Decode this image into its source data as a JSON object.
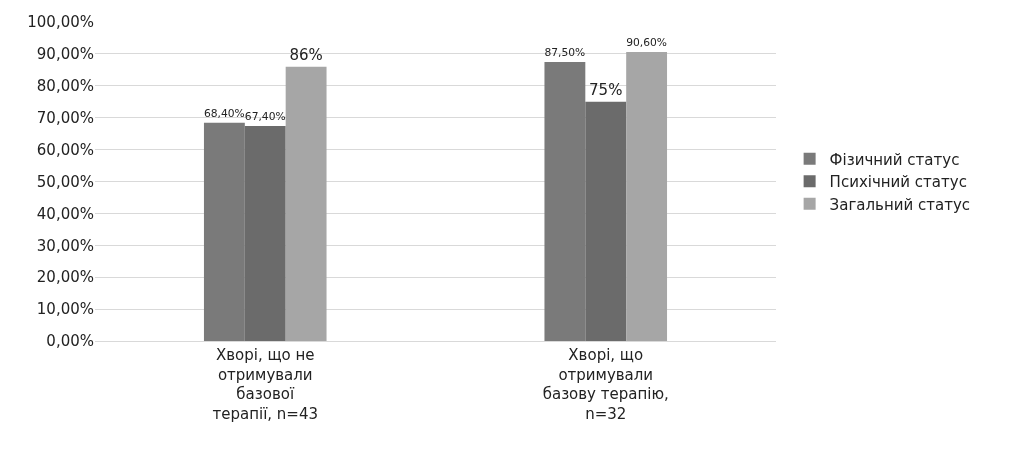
{
  "chart_data": {
    "type": "bar",
    "categories": [
      "Хворі, що не отримували базової терапії, n=43",
      "Хворі, що отримували базову терапію, n=32"
    ],
    "series": [
      {
        "name": "Фізичний статус",
        "color": "#7a7a7a",
        "values": [
          68.4,
          87.5
        ],
        "value_labels": [
          "68,40%",
          "87,50%"
        ]
      },
      {
        "name": "Психічний статус",
        "color": "#6b6b6b",
        "values": [
          67.4,
          75
        ],
        "value_labels": [
          "67,40%",
          "75%"
        ]
      },
      {
        "name": "Загальний статус",
        "color": "#a6a6a6",
        "values": [
          86,
          90.6
        ],
        "value_labels": [
          "86%",
          "90,60%"
        ]
      }
    ],
    "ylim": [
      0,
      100
    ],
    "yticks": [
      {
        "value": 0,
        "label": "0,00%"
      },
      {
        "value": 10,
        "label": "10,00%"
      },
      {
        "value": 20,
        "label": "20,00%"
      },
      {
        "value": 30,
        "label": "30,00%"
      },
      {
        "value": 40,
        "label": "40,00%"
      },
      {
        "value": 50,
        "label": "50,00%"
      },
      {
        "value": 60,
        "label": "60,00%"
      },
      {
        "value": 70,
        "label": "70,00%"
      },
      {
        "value": 80,
        "label": "80,00%"
      },
      {
        "value": 90,
        "label": "90,00%"
      },
      {
        "value": 100,
        "label": "100,00%"
      }
    ],
    "grid": "y",
    "legend": "right"
  }
}
